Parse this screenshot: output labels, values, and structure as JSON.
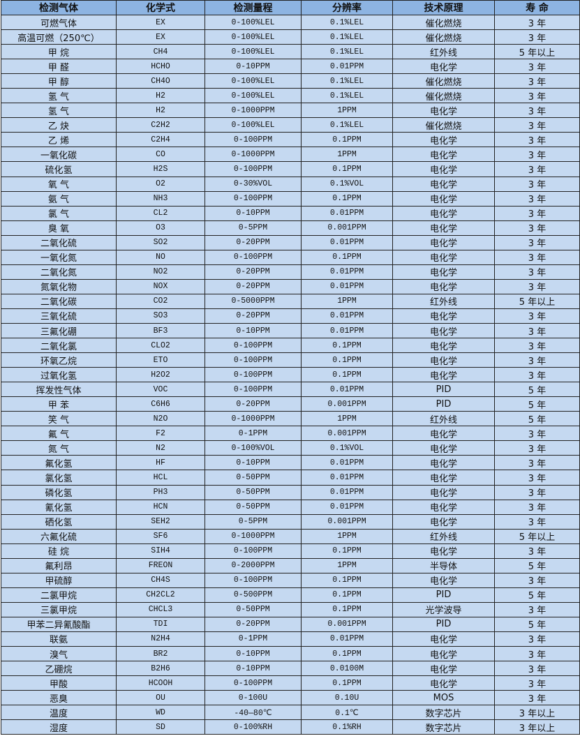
{
  "headers": [
    "检测气体",
    "化学式",
    "检测量程",
    "分辨率",
    "技术原理",
    "寿 命"
  ],
  "rows": [
    [
      "可燃气体",
      "EX",
      "0-100%LEL",
      "0.1%LEL",
      "催化燃烧",
      "3 年"
    ],
    [
      "高温可燃（250℃）",
      "EX",
      "0-100%LEL",
      "0.1%LEL",
      "催化燃烧",
      "3 年"
    ],
    [
      "甲 烷",
      "CH4",
      "0-100%LEL",
      "0.1%LEL",
      "红外线",
      "5 年以上"
    ],
    [
      "甲 醛",
      "HCHO",
      "0-10PPM",
      "0.01PPM",
      "电化学",
      "3 年"
    ],
    [
      "甲 醇",
      "CH4O",
      "0-100%LEL",
      "0.1%LEL",
      "催化燃烧",
      "3 年"
    ],
    [
      "氢 气",
      "H2",
      "0-100%LEL",
      "0.1%LEL",
      "催化燃烧",
      "3 年"
    ],
    [
      "氢 气",
      "H2",
      "0-1000PPM",
      "1PPM",
      "电化学",
      "3 年"
    ],
    [
      "乙 炔",
      "C2H2",
      "0-100%LEL",
      "0.1%LEL",
      "催化燃烧",
      "3 年"
    ],
    [
      "乙 烯",
      "C2H4",
      "0-100PPM",
      "0.1PPM",
      "电化学",
      "3 年"
    ],
    [
      "一氧化碳",
      "CO",
      "0-1000PPM",
      "1PPM",
      "电化学",
      "3 年"
    ],
    [
      "硫化氢",
      "H2S",
      "0-100PPM",
      "0.1PPM",
      "电化学",
      "3 年"
    ],
    [
      "氧 气",
      "O2",
      "0-30%VOL",
      "0.1%VOL",
      "电化学",
      "3 年"
    ],
    [
      "氨 气",
      "NH3",
      "0-100PPM",
      "0.1PPM",
      "电化学",
      "3 年"
    ],
    [
      "氯 气",
      "CL2",
      "0-10PPM",
      "0.01PPM",
      "电化学",
      "3 年"
    ],
    [
      "臭 氧",
      "O3",
      "0-5PPM",
      "0.001PPM",
      "电化学",
      "3 年"
    ],
    [
      "二氧化硫",
      "SO2",
      "0-20PPM",
      "0.01PPM",
      "电化学",
      "3 年"
    ],
    [
      "一氧化氮",
      "NO",
      "0-100PPM",
      "0.1PPM",
      "电化学",
      "3 年"
    ],
    [
      "二氧化氮",
      "NO2",
      "0-20PPM",
      "0.01PPM",
      "电化学",
      "3 年"
    ],
    [
      "氮氧化物",
      "NOX",
      "0-20PPM",
      "0.01PPM",
      "电化学",
      "3 年"
    ],
    [
      "二氧化碳",
      "CO2",
      "0-5000PPM",
      "1PPM",
      "红外线",
      "5 年以上"
    ],
    [
      "三氧化硫",
      "SO3",
      "0-20PPM",
      "0.01PPM",
      "电化学",
      "3 年"
    ],
    [
      "三氟化硼",
      "BF3",
      "0-10PPM",
      "0.01PPM",
      "电化学",
      "3 年"
    ],
    [
      "二氧化氯",
      "CLO2",
      "0-100PPM",
      "0.1PPM",
      "电化学",
      "3 年"
    ],
    [
      "环氧乙烷",
      "ETO",
      "0-100PPM",
      "0.1PPM",
      "电化学",
      "3 年"
    ],
    [
      "过氧化氢",
      "H2O2",
      "0-100PPM",
      "0.1PPM",
      "电化学",
      "3 年"
    ],
    [
      "挥发性气体",
      "VOC",
      "0-100PPM",
      "0.01PPM",
      "PID",
      "5 年"
    ],
    [
      "甲 苯",
      "C6H6",
      "0-20PPM",
      "0.001PPM",
      "PID",
      "5 年"
    ],
    [
      "笑 气",
      "N2O",
      "0-1000PPM",
      "1PPM",
      "红外线",
      "5 年"
    ],
    [
      "氟 气",
      "F2",
      "0-1PPM",
      "0.001PPM",
      "电化学",
      "3 年"
    ],
    [
      "氮 气",
      "N2",
      "0-100%VOL",
      "0.1%VOL",
      "电化学",
      "3 年"
    ],
    [
      "氟化氢",
      "HF",
      "0-10PPM",
      "0.01PPM",
      "电化学",
      "3 年"
    ],
    [
      "氯化氢",
      "HCL",
      "0-50PPM",
      "0.01PPM",
      "电化学",
      "3 年"
    ],
    [
      "磷化氢",
      "PH3",
      "0-50PPM",
      "0.01PPM",
      "电化学",
      "3 年"
    ],
    [
      "氰化氢",
      "HCN",
      "0-50PPM",
      "0.01PPM",
      "电化学",
      "3 年"
    ],
    [
      "硒化氢",
      "SEH2",
      "0-5PPM",
      "0.001PPM",
      "电化学",
      "3 年"
    ],
    [
      "六氟化硫",
      "SF6",
      "0-1000PPM",
      "1PPM",
      "红外线",
      "5 年以上"
    ],
    [
      "硅 烷",
      "SIH4",
      "0-100PPM",
      "0.1PPM",
      "电化学",
      "3 年"
    ],
    [
      "氟利昂",
      "FREON",
      "0-2000PPM",
      "1PPM",
      "半导体",
      "5 年"
    ],
    [
      "甲硫醇",
      "CH4S",
      "0-100PPM",
      "0.1PPM",
      "电化学",
      "3 年"
    ],
    [
      "二氯甲烷",
      "CH2CL2",
      "0-500PPM",
      "0.1PPM",
      "PID",
      "5 年"
    ],
    [
      "三氯甲烷",
      "CHCL3",
      "0-50PPM",
      "0.1PPM",
      "光学波导",
      "3 年"
    ],
    [
      "甲苯二异氰酸酯",
      "TDI",
      "0-20PPM",
      "0.001PPM",
      "PID",
      "5 年"
    ],
    [
      "联氨",
      "N2H4",
      "0-1PPM",
      "0.01PPM",
      "电化学",
      "3 年"
    ],
    [
      "溴气",
      "BR2",
      "0-10PPM",
      "0.1PPM",
      "电化学",
      "3 年"
    ],
    [
      "乙硼烷",
      "B2H6",
      "0-10PPM",
      "0.0100M",
      "电化学",
      "3 年"
    ],
    [
      "甲酸",
      "HCOOH",
      "0-100PPM",
      "0.1PPM",
      "电化学",
      "3 年"
    ],
    [
      "恶臭",
      "OU",
      "0-100U",
      "0.10U",
      "MOS",
      "3 年"
    ],
    [
      "温度",
      "WD",
      "-40—80℃",
      "0.1℃",
      "数字芯片",
      "3 年以上"
    ],
    [
      "湿度",
      "SD",
      "0-100%RH",
      "0.1%RH",
      "数字芯片",
      "3 年以上"
    ]
  ],
  "colors": {
    "header_bg": "#8db4e2",
    "row_bg": "#c5d9f1",
    "border": "#222222"
  }
}
